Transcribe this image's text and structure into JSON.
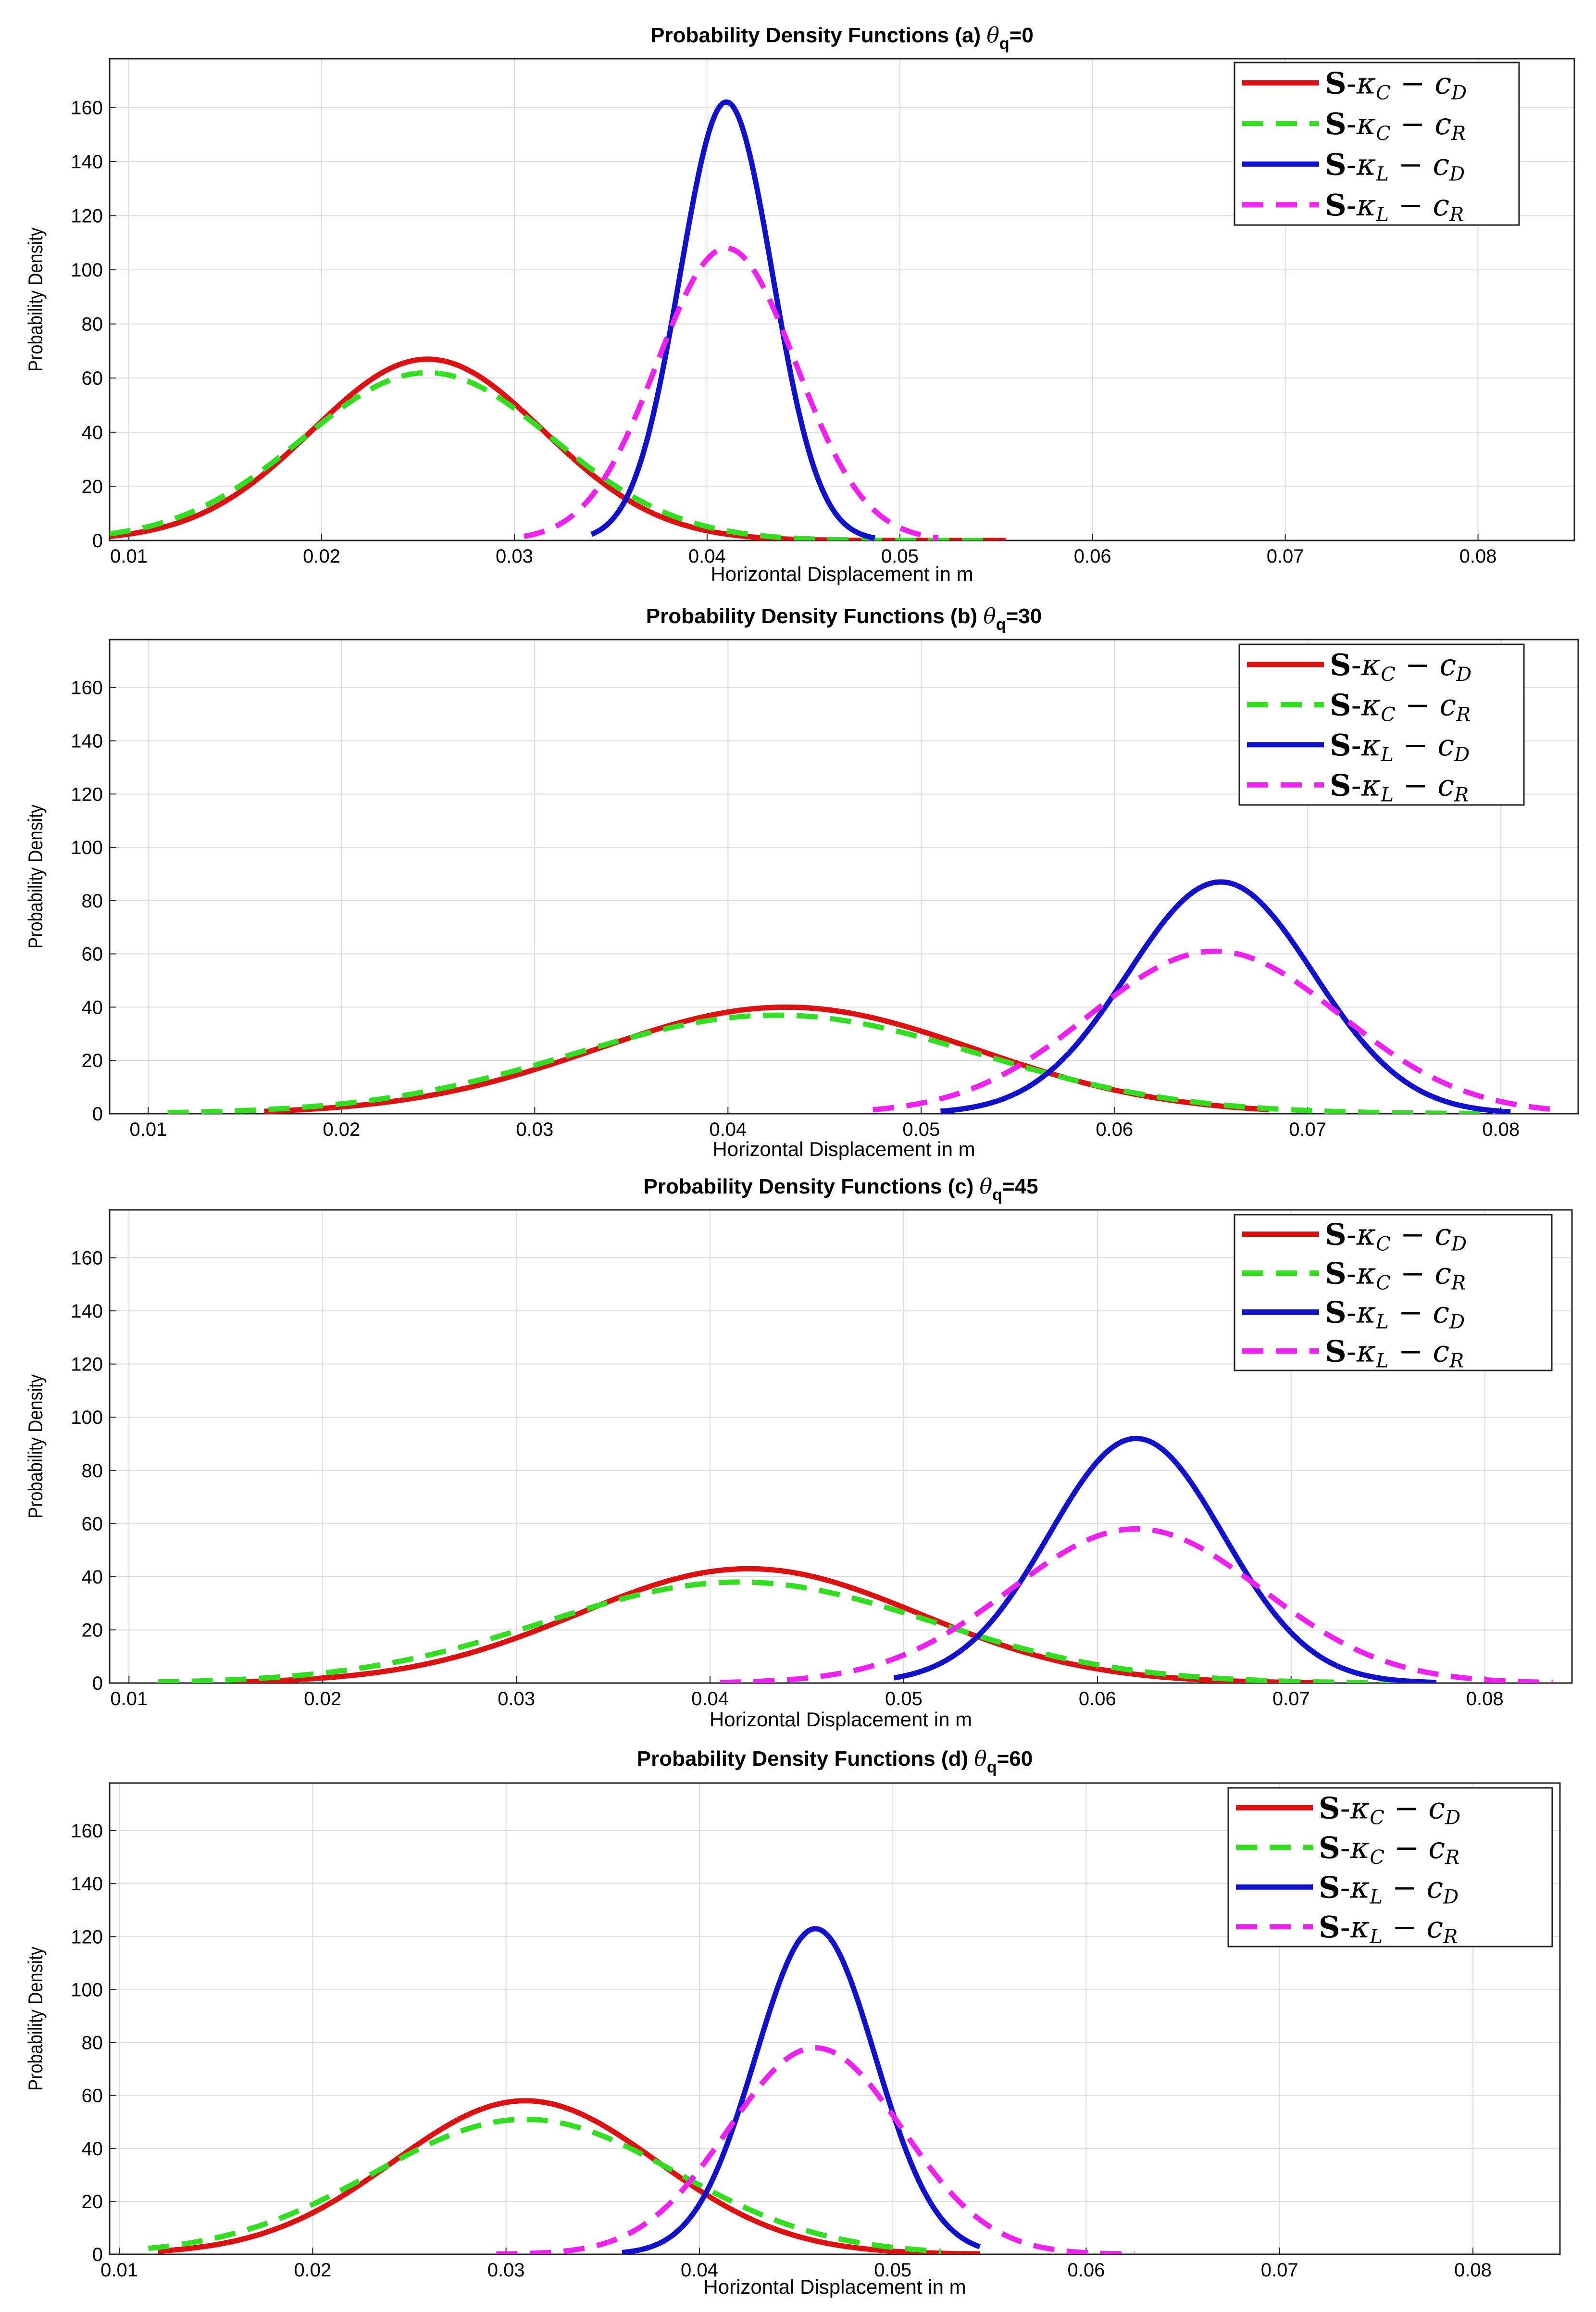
{
  "chart_data": [
    {
      "type": "line",
      "title_prefix": "Probability Density Functions (a) ",
      "theta_symbol": "θ",
      "theta_sub": "q",
      "theta_value": "=0",
      "xlabel": "Horizontal Displacement in m",
      "ylabel": "Probability Density",
      "xlim": [
        0.009,
        0.085
      ],
      "ylim": [
        0,
        178
      ],
      "xticks": [
        0.01,
        0.02,
        0.03,
        0.04,
        0.05,
        0.06,
        0.07,
        0.08
      ],
      "xtick_labels": [
        "0.01",
        "0.02",
        "0.03",
        "0.04",
        "0.05",
        "0.06",
        "0.07",
        "0.08"
      ],
      "yticks": [
        0,
        20,
        40,
        60,
        80,
        100,
        120,
        140,
        160
      ],
      "ytick_labels": [
        "0",
        "20",
        "40",
        "60",
        "80",
        "100",
        "120",
        "140",
        "160"
      ],
      "legend_location": "top-right",
      "series": [
        {
          "name": "S-κC − cD",
          "color": "#dd1111",
          "dash": "solid",
          "peak_x": 0.0255,
          "peak_y": 67,
          "sigma": 0.006,
          "x_range": [
            0.009,
            0.0555
          ]
        },
        {
          "name": "S-κC − cR",
          "color": "#33dd22",
          "dash": "dashed",
          "peak_x": 0.0255,
          "peak_y": 62,
          "sigma": 0.0065,
          "x_range": [
            0.009,
            0.055
          ]
        },
        {
          "name": "S-κL − cD",
          "color": "#1111cc",
          "dash": "solid",
          "peak_x": 0.041,
          "peak_y": 162,
          "sigma": 0.0024,
          "x_range": [
            0.034,
            0.0487
          ]
        },
        {
          "name": "S-κL − cR",
          "color": "#ee22ee",
          "dash": "dashed",
          "peak_x": 0.041,
          "peak_y": 108,
          "sigma": 0.0036,
          "x_range": [
            0.0305,
            0.052
          ]
        }
      ]
    },
    {
      "type": "line",
      "title_prefix": "Probability Density Functions (b) ",
      "theta_symbol": "θ",
      "theta_sub": "q",
      "theta_value": "=30",
      "xlabel": "Horizontal Displacement in m",
      "ylabel": "Probability Density",
      "xlim": [
        0.008,
        0.084
      ],
      "ylim": [
        0,
        178
      ],
      "xticks": [
        0.01,
        0.02,
        0.03,
        0.04,
        0.05,
        0.06,
        0.07,
        0.08
      ],
      "xtick_labels": [
        "0.01",
        "0.02",
        "0.03",
        "0.04",
        "0.05",
        "0.06",
        "0.07",
        "0.08"
      ],
      "yticks": [
        0,
        20,
        40,
        60,
        80,
        100,
        120,
        140,
        160
      ],
      "ytick_labels": [
        "0",
        "20",
        "40",
        "60",
        "80",
        "100",
        "120",
        "140",
        "160"
      ],
      "legend_location": "top-right",
      "series": [
        {
          "name": "S-κC − cD",
          "color": "#dd1111",
          "dash": "solid",
          "peak_x": 0.043,
          "peak_y": 40,
          "sigma": 0.0098,
          "x_range": [
            0.016,
            0.068
          ]
        },
        {
          "name": "S-κC − cR",
          "color": "#33dd22",
          "dash": "dashed",
          "peak_x": 0.0425,
          "peak_y": 37,
          "sigma": 0.0105,
          "x_range": [
            0.011,
            0.08
          ]
        },
        {
          "name": "S-κL − cD",
          "color": "#1111cc",
          "dash": "solid",
          "peak_x": 0.0655,
          "peak_y": 87,
          "sigma": 0.0048,
          "x_range": [
            0.051,
            0.0805
          ]
        },
        {
          "name": "S-κL − cR",
          "color": "#ee22ee",
          "dash": "dashed",
          "peak_x": 0.0652,
          "peak_y": 61,
          "sigma": 0.0065,
          "x_range": [
            0.0475,
            0.083
          ]
        }
      ]
    },
    {
      "type": "line",
      "title_prefix": "Probability Density Functions (c) ",
      "theta_symbol": "θ",
      "theta_sub": "q",
      "theta_value": "=45",
      "xlabel": "Horizontal Displacement in m",
      "ylabel": "Probability Density",
      "xlim": [
        0.009,
        0.0845
      ],
      "ylim": [
        0,
        178
      ],
      "xticks": [
        0.01,
        0.02,
        0.03,
        0.04,
        0.05,
        0.06,
        0.07,
        0.08
      ],
      "xtick_labels": [
        "0.01",
        "0.02",
        "0.03",
        "0.04",
        "0.05",
        "0.06",
        "0.07",
        "0.08"
      ],
      "yticks": [
        0,
        20,
        40,
        60,
        80,
        100,
        120,
        140,
        160
      ],
      "ytick_labels": [
        "0",
        "20",
        "40",
        "60",
        "80",
        "100",
        "120",
        "140",
        "160"
      ],
      "legend_location": "top-right",
      "series": [
        {
          "name": "S-κC − cD",
          "color": "#dd1111",
          "dash": "solid",
          "peak_x": 0.042,
          "peak_y": 43,
          "sigma": 0.0088,
          "x_range": [
            0.0155,
            0.0715
          ]
        },
        {
          "name": "S-κC − cR",
          "color": "#33dd22",
          "dash": "dashed",
          "peak_x": 0.0415,
          "peak_y": 38,
          "sigma": 0.01,
          "x_range": [
            0.0115,
            0.077
          ]
        },
        {
          "name": "S-κL − cD",
          "color": "#1111cc",
          "dash": "solid",
          "peak_x": 0.062,
          "peak_y": 92,
          "sigma": 0.0045,
          "x_range": [
            0.0495,
            0.0775
          ]
        },
        {
          "name": "S-κL − cR",
          "color": "#ee22ee",
          "dash": "dashed",
          "peak_x": 0.062,
          "peak_y": 58,
          "sigma": 0.0065,
          "x_range": [
            0.0405,
            0.0835
          ]
        }
      ]
    },
    {
      "type": "line",
      "title_prefix": "Probability Density Functions (d) ",
      "theta_symbol": "θ",
      "theta_sub": "q",
      "theta_value": "=60",
      "xlabel": "Horizontal Displacement in m",
      "ylabel": "Probability Density",
      "xlim": [
        0.0095,
        0.0845
      ],
      "ylim": [
        0,
        178
      ],
      "xticks": [
        0.01,
        0.02,
        0.03,
        0.04,
        0.05,
        0.06,
        0.07,
        0.08
      ],
      "xtick_labels": [
        "0.01",
        "0.02",
        "0.03",
        "0.04",
        "0.05",
        "0.06",
        "0.07",
        "0.08"
      ],
      "yticks": [
        0,
        20,
        40,
        60,
        80,
        100,
        120,
        140,
        160
      ],
      "ytick_labels": [
        "0",
        "20",
        "40",
        "60",
        "80",
        "100",
        "120",
        "140",
        "160"
      ],
      "legend_location": "top-right",
      "series": [
        {
          "name": "S-κC − cD",
          "color": "#dd1111",
          "dash": "solid",
          "peak_x": 0.031,
          "peak_y": 58,
          "sigma": 0.0068,
          "x_range": [
            0.012,
            0.0545
          ]
        },
        {
          "name": "S-κC − cR",
          "color": "#33dd22",
          "dash": "dashed",
          "peak_x": 0.031,
          "peak_y": 51,
          "sigma": 0.0078,
          "x_range": [
            0.0115,
            0.0525
          ]
        },
        {
          "name": "S-κL − cD",
          "color": "#1111cc",
          "dash": "solid",
          "peak_x": 0.046,
          "peak_y": 123,
          "sigma": 0.0031,
          "x_range": [
            0.036,
            0.0545
          ]
        },
        {
          "name": "S-κL − cR",
          "color": "#ee22ee",
          "dash": "dashed",
          "peak_x": 0.046,
          "peak_y": 78,
          "sigma": 0.0045,
          "x_range": [
            0.0295,
            0.0625
          ]
        }
      ]
    }
  ],
  "legend_parts": [
    {
      "bold": "S",
      "dash": "-",
      "kappa": "κ",
      "ksub": "C",
      "minus": " − ",
      "c": "c",
      "csub": "D"
    },
    {
      "bold": "S",
      "dash": "-",
      "kappa": "κ",
      "ksub": "C",
      "minus": " − ",
      "c": "c",
      "csub": "R"
    },
    {
      "bold": "S",
      "dash": "-",
      "kappa": "κ",
      "ksub": "L",
      "minus": " − ",
      "c": "c",
      "csub": "D"
    },
    {
      "bold": "S",
      "dash": "-",
      "kappa": "κ",
      "ksub": "L",
      "minus": " − ",
      "c": "c",
      "csub": "R"
    }
  ]
}
